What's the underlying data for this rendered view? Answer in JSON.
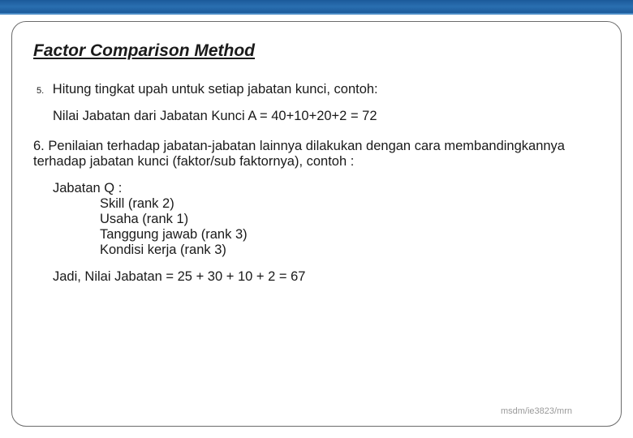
{
  "colors": {
    "topbar_gradient_start": "#1b5a9a",
    "topbar_gradient_mid": "#2a6fb0",
    "frame_border": "#6b6b6b",
    "text": "#1a1a1a",
    "footer_text": "#9a9a9a",
    "background": "#ffffff"
  },
  "typography": {
    "title_fontsize": 21,
    "body_fontsize": 16.5,
    "footer_fontsize": 11,
    "font_family": "Arial"
  },
  "title": "Factor Comparison Method",
  "item5": {
    "num": "5.",
    "text": "Hitung tingkat upah untuk setiap jabatan kunci, contoh:",
    "sub": "Nilai Jabatan dari Jabatan Kunci A = 40+10+20+2 = 72"
  },
  "item6": {
    "text": "6. Penilaian terhadap jabatan-jabatan lainnya dilakukan dengan cara membandingkannya terhadap jabatan kunci (faktor/sub faktornya), contoh :"
  },
  "jabatan": {
    "header": "Jabatan Q :",
    "lines": [
      "Skill (rank 2)",
      "Usaha (rank 1)",
      "Tanggung jawab (rank 3)",
      "Kondisi kerja (rank 3)"
    ]
  },
  "jadi": "Jadi, Nilai Jabatan = 25 + 30 + 10 + 2 = 67",
  "footer": "msdm/ie3823/mrn"
}
